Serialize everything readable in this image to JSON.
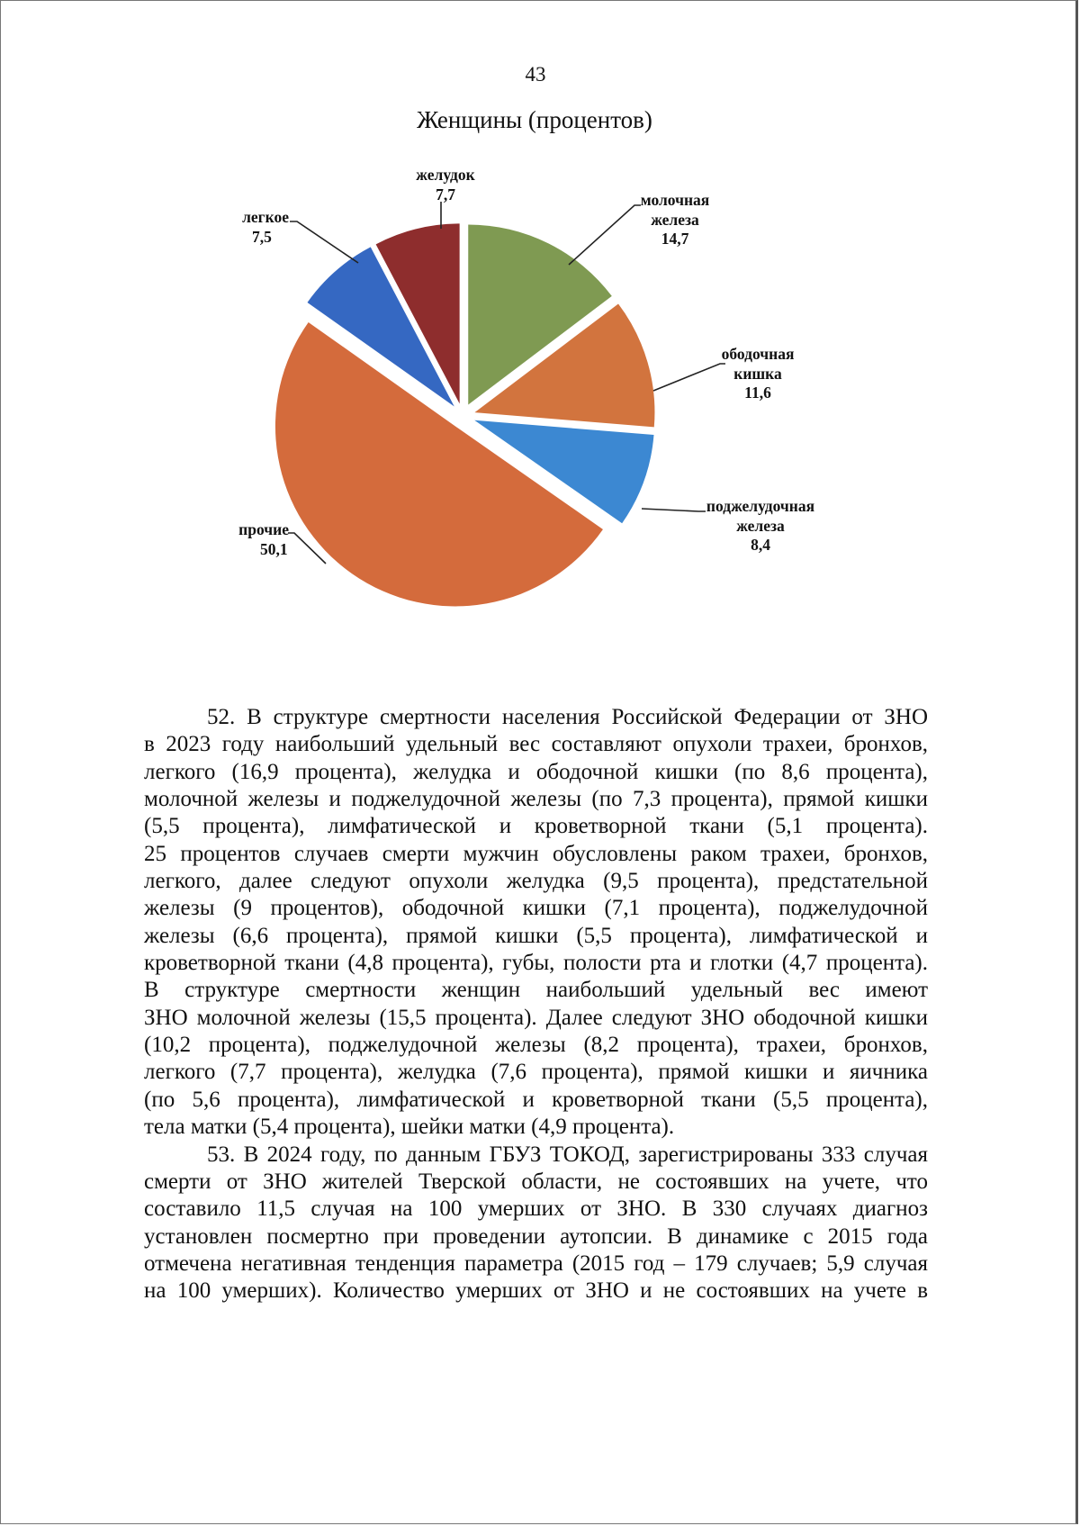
{
  "page_number": "43",
  "chart_title": "Женщины (процентов)",
  "chart_data": {
    "type": "pie",
    "title": "Женщины (процентов)",
    "exploded": true,
    "start": "top",
    "direction": "clockwise",
    "slices": [
      {
        "label": [
          "молочная",
          "железа"
        ],
        "value": 14.7,
        "value_text": "14,7",
        "color": "#7f9a52"
      },
      {
        "label": [
          "ободочная",
          "кишка"
        ],
        "value": 11.6,
        "value_text": "11,6",
        "color": "#d2743e"
      },
      {
        "label": [
          "поджелудочная",
          "железа"
        ],
        "value": 8.4,
        "value_text": "8,4",
        "color": "#3c88d2"
      },
      {
        "label": [
          "прочие"
        ],
        "value": 50.1,
        "value_text": "50,1",
        "color": "#d46b3c"
      },
      {
        "label": [
          "легкое"
        ],
        "value": 7.5,
        "value_text": "7,5",
        "color": "#3568c2"
      },
      {
        "label": [
          "желудок"
        ],
        "value": 7.7,
        "value_text": "7,7",
        "color": "#8e2d2d"
      }
    ]
  },
  "paragraphs": [
    {
      "lines": [
        "52. В структуре смертности населения Российской Федерации от ЗНО",
        "в 2023 году наибольший удельный вес составляют опухоли трахеи, бронхов,",
        "легкого (16,9 процента), желудка и ободочной кишки (по 8,6 процента),",
        "молочной железы и поджелудочной железы (по 7,3 процента), прямой кишки",
        "(5,5 процента), лимфатической и кроветворной ткани (5,1 процента).",
        "25 процентов случаев смерти мужчин обусловлены раком трахеи, бронхов,",
        "легкого, далее следуют опухоли желудка (9,5 процента), предстательной",
        "железы (9 процентов), ободочной кишки (7,1 процента), поджелудочной",
        "железы (6,6 процента), прямой кишки (5,5 процента), лимфатической и",
        "кроветворной ткани (4,8 процента), губы, полости рта и глотки (4,7 процента).",
        "В структуре смертности женщин наибольший удельный вес имеют",
        "ЗНО молочной железы (15,5 процента). Далее следуют ЗНО ободочной кишки",
        "(10,2 процента), поджелудочной железы (8,2 процента), трахеи, бронхов,",
        "легкого (7,7 процента), желудка (7,6 процента), прямой кишки и яичника",
        "(по 5,6 процента), лимфатической и кроветворной ткани (5,5 процента),",
        "тела матки (5,4 процента), шейки матки (4,9 процента)."
      ]
    },
    {
      "lines": [
        "53. В 2024 году, по данным ГБУЗ ТОКОД, зарегистрированы 333 случая",
        "смерти от ЗНО жителей Тверской области, не состоявших на учете, что",
        "составило 11,5 случая на 100 умерших от ЗНО. В 330 случаях диагноз",
        "установлен посмертно при проведении аутопсии. В динамике с 2015 года",
        "отмечена негативная тенденция параметра (2015 год – 179 случаев; 5,9 случая",
        "на 100 умерших). Количество умерших от ЗНО и не состоявших на учете в"
      ],
      "continues": true
    }
  ]
}
